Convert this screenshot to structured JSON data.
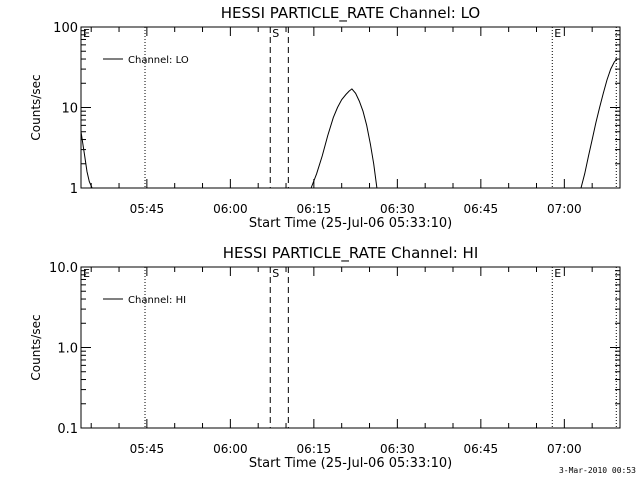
{
  "timestamp": "3-Mar-2010 00:53",
  "colors": {
    "background": "#ffffff",
    "foreground": "#000000"
  },
  "chart_data": [
    {
      "type": "line",
      "title": "HESSI PARTICLE_RATE Channel: LO",
      "xlabel": "Start Time (25-Jul-06 05:33:10)",
      "ylabel": "Counts/sec",
      "yscale": "log",
      "ylim": [
        1,
        100
      ],
      "xlim": [
        "05:33:10",
        "07:10:00"
      ],
      "x_ticks": [
        "05:45",
        "06:00",
        "06:15",
        "06:30",
        "06:45",
        "07:00"
      ],
      "y_ticks": [
        "1",
        "10",
        "100"
      ],
      "legend": {
        "position": "top-left",
        "entries": [
          "Channel: LO"
        ]
      },
      "event_markers": [
        {
          "label": "E",
          "time": "05:33:10",
          "style": "none"
        },
        {
          "label": "",
          "time": "05:44:40",
          "style": "dotted"
        },
        {
          "label": "S",
          "time": "06:07:10",
          "style": "dashed"
        },
        {
          "label": "",
          "time": "06:10:25",
          "style": "dashed"
        },
        {
          "label": "E",
          "time": "06:57:50",
          "style": "dotted"
        },
        {
          "label": "",
          "time": "07:09:20",
          "style": "dotted"
        }
      ],
      "series": [
        {
          "name": "Channel: LO",
          "segments": [
            {
              "x": [
                "05:33:10",
                "05:33:30",
                "05:33:50",
                "05:34:15",
                "05:34:40",
                "05:35:10"
              ],
              "y": [
                5,
                3.5,
                2.5,
                1.6,
                1.2,
                1
              ]
            },
            {
              "x": [
                "06:14:30",
                "06:15:30",
                "06:16:30",
                "06:17:30",
                "06:18:30",
                "06:19:15",
                "06:20:00",
                "06:20:45",
                "06:21:20",
                "06:21:50",
                "06:22:30",
                "06:23:10",
                "06:23:50",
                "06:24:30",
                "06:25:10",
                "06:25:45",
                "06:26:20"
              ],
              "y": [
                1,
                1.5,
                2.5,
                4.5,
                7.5,
                10,
                12.5,
                14.5,
                16,
                17,
                15,
                12,
                9,
                6,
                3.5,
                2,
                1
              ]
            },
            {
              "x": [
                "07:03:00",
                "07:03:40",
                "07:04:20",
                "07:05:00",
                "07:05:40",
                "07:06:20",
                "07:07:00",
                "07:07:40",
                "07:08:20",
                "07:09:00",
                "07:09:30"
              ],
              "y": [
                1,
                1.5,
                2.5,
                4,
                6.5,
                10,
                15,
                22,
                30,
                37,
                40
              ]
            }
          ]
        }
      ]
    },
    {
      "type": "line",
      "title": "HESSI PARTICLE_RATE Channel: HI",
      "xlabel": "Start Time (25-Jul-06 05:33:10)",
      "ylabel": "Counts/sec",
      "yscale": "log",
      "ylim": [
        0.1,
        10.0
      ],
      "xlim": [
        "05:33:10",
        "07:10:00"
      ],
      "x_ticks": [
        "05:45",
        "06:00",
        "06:15",
        "06:30",
        "06:45",
        "07:00"
      ],
      "y_ticks": [
        "0.1",
        "1.0",
        "10.0"
      ],
      "legend": {
        "position": "top-left",
        "entries": [
          "Channel: HI"
        ]
      },
      "event_markers": [
        {
          "label": "E",
          "time": "05:33:10",
          "style": "none"
        },
        {
          "label": "",
          "time": "05:44:40",
          "style": "dotted"
        },
        {
          "label": "S",
          "time": "06:07:10",
          "style": "dashed"
        },
        {
          "label": "",
          "time": "06:10:25",
          "style": "dashed"
        },
        {
          "label": "E",
          "time": "06:57:50",
          "style": "dotted"
        },
        {
          "label": "",
          "time": "07:09:20",
          "style": "dotted"
        }
      ],
      "series": [
        {
          "name": "Channel: HI",
          "segments": []
        }
      ]
    }
  ]
}
